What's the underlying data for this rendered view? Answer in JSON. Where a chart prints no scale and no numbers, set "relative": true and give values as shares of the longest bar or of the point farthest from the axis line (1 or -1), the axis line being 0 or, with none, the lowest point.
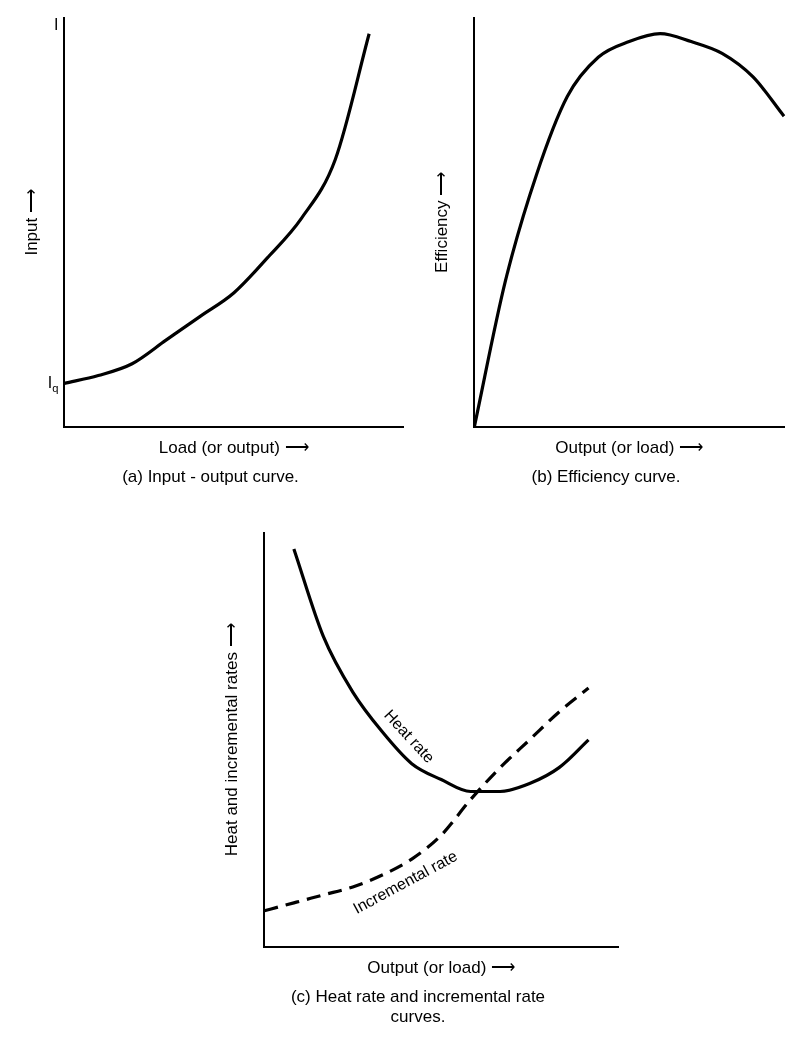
{
  "chart_data": [
    {
      "type": "line",
      "relative": true,
      "title": "(a) Input - output curve.",
      "xlabel": "Load (or output) ⟶",
      "ylabel": "Input ⟶",
      "marker": "none",
      "categories": [
        null,
        null,
        null,
        null,
        null,
        null,
        null,
        null,
        null,
        null,
        null
      ],
      "series": [
        {
          "color": "#000000",
          "values": [
            0.11,
            0.13,
            0.16,
            0.22,
            0.28,
            0.34,
            0.43,
            0.53,
            0.68,
            1,
            null
          ]
        }
      ],
      "annotations": [
        "I",
        "I$_{q}$"
      ]
    },
    {
      "type": "line",
      "relative": true,
      "title": "(b) Efficiency curve.",
      "xlabel": "Output (or load) ⟶",
      "ylabel": "Efficiency ⟶",
      "marker": "none",
      "categories": [
        null,
        null,
        null,
        null,
        null,
        null,
        null,
        null,
        null,
        null,
        null
      ],
      "series": [
        {
          "color": "#000000",
          "values": [
            0,
            0.37,
            0.64,
            0.84,
            0.94,
            0.98,
            1,
            0.98,
            0.95,
            0.89,
            0.79
          ]
        }
      ]
    },
    {
      "type": "line",
      "relative": true,
      "title": "(c) Heat rate and incremental rate curves.",
      "xlabel": "Output (or load) ⟶",
      "ylabel": "Heat and incremental rates ⟶",
      "marker": "none",
      "categories": [
        null,
        null,
        null,
        null,
        null,
        null,
        null,
        null,
        null,
        null,
        null,
        null,
        null
      ],
      "series": [
        {
          "name": "Heat rate",
          "color": "#000000",
          "line_style": "solid",
          "values": [
            null,
            1,
            0.78,
            0.64,
            0.54,
            0.46,
            0.42,
            0.39,
            0.39,
            0.41,
            0.45,
            0.52,
            null
          ]
        },
        {
          "name": "Incremental rate",
          "color": "#000000",
          "line_style": "dashed",
          "values": [
            0.09,
            0.11,
            0.13,
            0.15,
            0.18,
            0.22,
            0.28,
            0.37,
            0.45,
            0.52,
            0.59,
            0.65,
            null
          ]
        }
      ]
    }
  ]
}
